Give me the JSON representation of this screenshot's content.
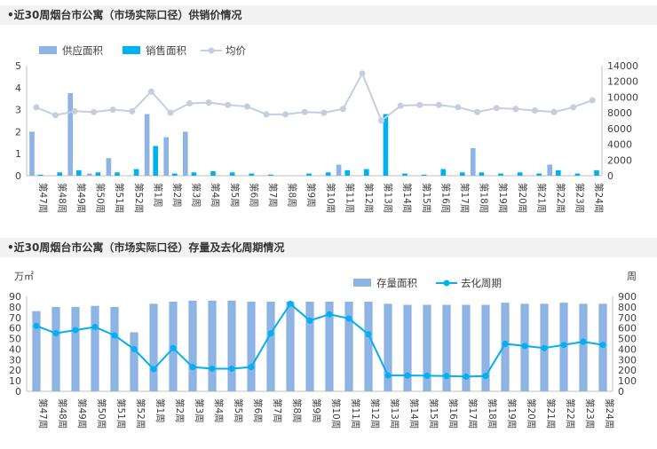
{
  "charts": [
    {
      "title": "•近30周烟台市公寓（市场实际口径）供销价情况",
      "chart_data": {
        "type": "bar",
        "categories": [
          "第47周",
          "第48周",
          "第49周",
          "第50周",
          "第51周",
          "第52周",
          "第1周",
          "第2周",
          "第3周",
          "第4周",
          "第5周",
          "第6周",
          "第7周",
          "第8周",
          "第9周",
          "第10周",
          "第11周",
          "第12周",
          "第13周",
          "第14周",
          "第15周",
          "第16周",
          "第17周",
          "第18周",
          "第19周",
          "第20周",
          "第21周",
          "第22周",
          "第23周",
          "第24周"
        ],
        "series": [
          {
            "name": "供应面积",
            "axis": "left",
            "type": "bar",
            "color": "#8eb4e3",
            "values": [
              2.0,
              0,
              3.75,
              0.1,
              0.8,
              0,
              2.8,
              1.75,
              2.0,
              0,
              0,
              0,
              0,
              0,
              0,
              0,
              0.5,
              0,
              0,
              0,
              0,
              0,
              0,
              1.25,
              0,
              0,
              0,
              0.5,
              0,
              0
            ]
          },
          {
            "name": "销售面积",
            "axis": "left",
            "type": "bar",
            "color": "#00b0f0",
            "values": [
              0.05,
              0.15,
              0.25,
              0.15,
              0.15,
              0.3,
              1.35,
              0.1,
              0.15,
              0.2,
              0.15,
              0.1,
              0.05,
              0,
              0.1,
              0.15,
              0.25,
              0.3,
              2.8,
              0.1,
              0.05,
              0.3,
              0.15,
              0.15,
              0.1,
              0.15,
              0.1,
              0.25,
              0.1,
              0.25
            ]
          },
          {
            "name": "均价",
            "axis": "right",
            "type": "line",
            "color": "#c5cde0",
            "values": [
              8700,
              7700,
              8200,
              8100,
              8400,
              8200,
              10700,
              8000,
              9200,
              9300,
              9000,
              8800,
              7800,
              7800,
              8100,
              8000,
              8500,
              13000,
              7000,
              8900,
              9000,
              9000,
              8700,
              8100,
              8600,
              8500,
              8300,
              8100,
              8700,
              9600
            ]
          }
        ],
        "left_axis": {
          "ylim": [
            0,
            5
          ],
          "ticks": [
            0,
            1,
            2,
            3,
            4,
            5
          ]
        },
        "right_axis": {
          "ylim": [
            0,
            14000
          ],
          "ticks": [
            0,
            2000,
            4000,
            6000,
            8000,
            10000,
            12000,
            14000
          ]
        },
        "legend_position": "top",
        "grid": false
      }
    },
    {
      "title": "•近30周烟台市公寓（市场实际口径）存量及去化周期情况",
      "chart_data": {
        "type": "bar",
        "categories": [
          "第47周",
          "第48周",
          "第49周",
          "第50周",
          "第51周",
          "第52周",
          "第1周",
          "第2周",
          "第3周",
          "第4周",
          "第5周",
          "第6周",
          "第7周",
          "第8周",
          "第9周",
          "第10周",
          "第11周",
          "第12周",
          "第13周",
          "第14周",
          "第15周",
          "第16周",
          "第17周",
          "第18周",
          "第19周",
          "第20周",
          "第21周",
          "第22周",
          "第23周",
          "第24周"
        ],
        "series": [
          {
            "name": "存量面积",
            "axis": "left",
            "type": "bar",
            "color": "#8eb4e3",
            "values": [
              76,
              80,
              80,
              81,
              80,
              56,
              83,
              85,
              86,
              86,
              86,
              85,
              85,
              85,
              85,
              85,
              85,
              85,
              83,
              82,
              82,
              82,
              82,
              82,
              84,
              83,
              83,
              84,
              83,
              83
            ]
          },
          {
            "name": "去化周期",
            "axis": "right",
            "type": "line",
            "color": "#00b0f0",
            "values": [
              620,
              550,
              580,
              610,
              530,
              400,
              210,
              410,
              230,
              215,
              215,
              230,
              550,
              830,
              670,
              730,
              690,
              540,
              150,
              150,
              148,
              145,
              140,
              145,
              450,
              430,
              410,
              440,
              470,
              440
            ]
          }
        ],
        "left_axis": {
          "label": "万㎡",
          "ylim": [
            0,
            90
          ],
          "ticks": [
            0,
            10,
            20,
            30,
            40,
            50,
            60,
            70,
            80,
            90
          ]
        },
        "right_axis": {
          "label": "周",
          "ylim": [
            0,
            900
          ],
          "ticks": [
            0,
            100,
            200,
            300,
            400,
            500,
            600,
            700,
            800,
            900
          ]
        },
        "legend_position": "top-right",
        "grid": false
      }
    }
  ]
}
